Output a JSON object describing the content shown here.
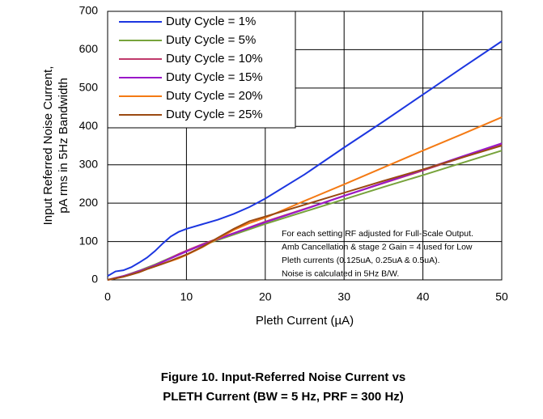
{
  "chart_data": {
    "type": "line",
    "ylabel": [
      "Input Referred Noise Current,",
      "pA rms in 5Hz Bandwidth"
    ],
    "xlabel": "Pleth Current (µA)",
    "x": [
      0,
      1,
      2,
      3,
      4,
      5,
      6,
      7,
      8,
      9,
      10,
      12,
      14,
      16,
      18,
      20,
      25,
      30,
      35,
      40,
      45,
      50
    ],
    "series": [
      {
        "name": "Duty Cycle = 1%",
        "color": "#1c36e0",
        "values": [
          10,
          22,
          25,
          33,
          45,
          58,
          75,
          95,
          113,
          125,
          133,
          145,
          157,
          172,
          190,
          212,
          275,
          345,
          413,
          483,
          553,
          622
        ]
      },
      {
        "name": "Duty Cycle = 5%",
        "color": "#77a33b",
        "values": [
          0,
          5,
          10,
          17,
          24,
          32,
          40,
          49,
          58,
          67,
          76,
          90,
          104,
          118,
          132,
          146,
          178,
          210,
          242,
          273,
          305,
          337
        ]
      },
      {
        "name": "Duty Cycle = 10%",
        "color": "#c0396b",
        "values": [
          0,
          5,
          10,
          16,
          23,
          30,
          38,
          47,
          57,
          67,
          76,
          93,
          108,
          122,
          137,
          152,
          185,
          219,
          252,
          285,
          319,
          352
        ]
      },
      {
        "name": "Duty Cycle = 15%",
        "color": "#9a18c9",
        "values": [
          0,
          5,
          10,
          16,
          23,
          30,
          38,
          47,
          56,
          65,
          74,
          91,
          106,
          121,
          136,
          150,
          184,
          219,
          253,
          287,
          322,
          356
        ]
      },
      {
        "name": "Duty Cycle = 20%",
        "color": "#f47a14",
        "values": [
          0,
          4,
          8,
          14,
          20,
          28,
          35,
          42,
          49,
          56,
          65,
          85,
          108,
          130,
          148,
          162,
          206,
          249,
          293,
          337,
          380,
          424
        ]
      },
      {
        "name": "Duty Cycle = 25%",
        "color": "#9b4a12",
        "values": [
          0,
          4,
          8,
          14,
          20,
          28,
          35,
          42,
          50,
          58,
          66,
          86,
          110,
          133,
          153,
          165,
          196,
          227,
          258,
          288,
          319,
          350
        ]
      }
    ],
    "xlim": [
      0,
      50
    ],
    "xticks": [
      0,
      10,
      20,
      30,
      40,
      50
    ],
    "ylim": [
      0,
      700
    ],
    "yticks": [
      0,
      100,
      200,
      300,
      400,
      500,
      600,
      700
    ],
    "grid": true,
    "legend": "upper left",
    "annotation": [
      "For each setting RF adjusted for Full-Scale Output.",
      "Amb Cancellation & stage 2 Gain = 4 used for Low",
      "Pleth currents (0.125uA, 0.25uA & 0.5uA).",
      "Noise is calculated in 5Hz B/W."
    ],
    "caption": [
      "Figure 10. Input-Referred Noise Current vs",
      "PLETH Current (BW = 5 Hz, PRF = 300 Hz)"
    ]
  }
}
